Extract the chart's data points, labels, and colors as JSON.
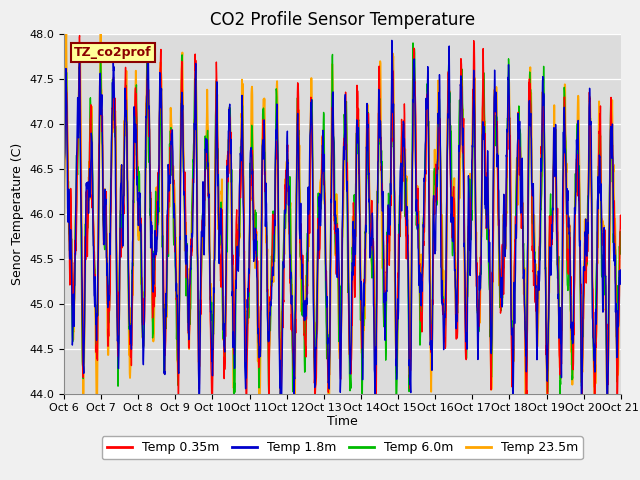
{
  "title": "CO2 Profile Sensor Temperature",
  "ylabel": "Senor Temperature (C)",
  "xlabel": "Time",
  "ylim": [
    44.0,
    48.0
  ],
  "yticks": [
    44.0,
    44.5,
    45.0,
    45.5,
    46.0,
    46.5,
    47.0,
    47.5,
    48.0
  ],
  "x_tick_labels": [
    "Oct 6",
    "Oct 7",
    "Oct 8",
    "Oct 9",
    "Oct 10",
    "Oct 11",
    "Oct 12",
    "Oct 13",
    "Oct 14",
    "Oct 15",
    "Oct 16",
    "Oct 17",
    "Oct 18",
    "Oct 19",
    "Oct 20",
    "Oct 21"
  ],
  "legend_labels": [
    "Temp 0.35m",
    "Temp 1.8m",
    "Temp 6.0m",
    "Temp 23.5m"
  ],
  "legend_colors": [
    "#ff0000",
    "#0000cc",
    "#00bb00",
    "#ffa500"
  ],
  "annotation_text": "TZ_co2prof",
  "annotation_color": "#8b0000",
  "annotation_bg": "#ffff99",
  "plot_bg_color": "#dcdcdc",
  "fig_bg_color": "#f0f0f0",
  "title_fontsize": 12,
  "axis_fontsize": 9,
  "tick_fontsize": 8,
  "legend_fontsize": 9,
  "base_temp": 45.8,
  "amplitude": 1.1,
  "n_points": 2000,
  "seed": 77
}
